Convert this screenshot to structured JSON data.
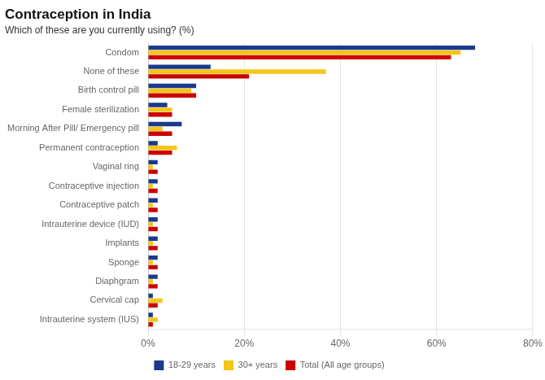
{
  "chart_data": {
    "type": "bar",
    "orientation": "horizontal",
    "title": "Contraception in India",
    "subtitle": "Which of these are you currently using? (%)",
    "categories": [
      "Condom",
      "None of these",
      "Birth control pill",
      "Female sterilization",
      "Morning After Pill/ Emergency pill",
      "Permanent contraception",
      "Vaginal ring",
      "Contraceptive injection",
      "Contraceptive patch",
      "Intrauterine device (IUD)",
      "Implants",
      "Sponge",
      "Diaphgram",
      "Cervical cap",
      "Intrauterine system (IUS)"
    ],
    "series": [
      {
        "name": "18-29 years",
        "color": "#1a3a8c",
        "values": [
          68,
          13,
          10,
          4,
          7,
          2,
          2,
          2,
          2,
          2,
          2,
          2,
          2,
          1,
          1
        ]
      },
      {
        "name": "30+ years",
        "color": "#f5c518",
        "values": [
          65,
          37,
          9,
          5,
          3,
          6,
          1,
          1,
          1,
          1,
          1,
          1,
          1,
          3,
          2
        ]
      },
      {
        "name": "Total (All age groups)",
        "color": "#cc0000",
        "values": [
          63,
          21,
          10,
          5,
          5,
          5,
          2,
          2,
          2,
          2,
          2,
          2,
          2,
          2,
          1
        ]
      }
    ],
    "xlim": [
      0,
      80
    ],
    "xticks": [
      {
        "value": 0,
        "label": "0%"
      },
      {
        "value": 20,
        "label": "20%"
      },
      {
        "value": 40,
        "label": "40%"
      },
      {
        "value": 60,
        "label": "60%"
      },
      {
        "value": 80,
        "label": "80%"
      }
    ],
    "grid": true,
    "legend": "bottom"
  }
}
